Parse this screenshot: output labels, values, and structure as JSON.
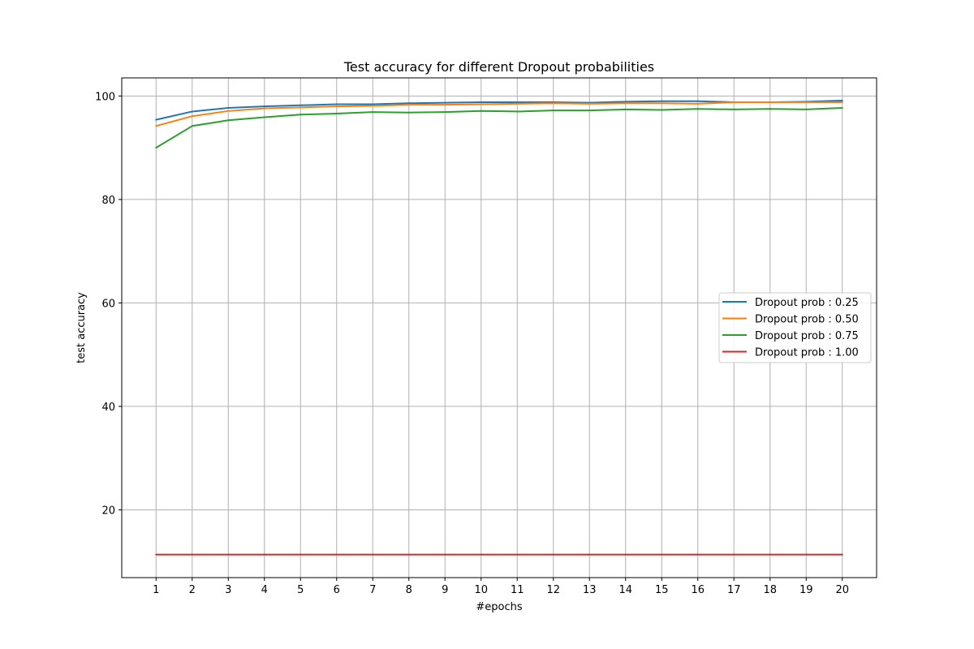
{
  "chart_data": {
    "type": "line",
    "title": "Test accuracy for different Dropout probabilities",
    "xlabel": "#epochs",
    "ylabel": "test accuracy",
    "x": [
      1,
      2,
      3,
      4,
      5,
      6,
      7,
      8,
      9,
      10,
      11,
      12,
      13,
      14,
      15,
      16,
      17,
      18,
      19,
      20
    ],
    "xlim": [
      0.05,
      20.95
    ],
    "ylim": [
      6.9,
      103.5
    ],
    "yticks": [
      20,
      40,
      60,
      80,
      100
    ],
    "grid": true,
    "legend_position": "center-right",
    "series": [
      {
        "name": "Dropout prob : 0.25",
        "color": "#1f77b4",
        "values": [
          95.4,
          97.0,
          97.7,
          98.0,
          98.2,
          98.4,
          98.4,
          98.6,
          98.7,
          98.8,
          98.8,
          98.8,
          98.7,
          98.9,
          99.0,
          99.0,
          98.8,
          98.8,
          98.9,
          99.1
        ]
      },
      {
        "name": "Dropout prob : 0.50",
        "color": "#ff7f0e",
        "values": [
          94.2,
          96.1,
          97.1,
          97.6,
          97.8,
          98.0,
          98.1,
          98.3,
          98.3,
          98.4,
          98.5,
          98.6,
          98.5,
          98.6,
          98.6,
          98.5,
          98.8,
          98.8,
          98.8,
          98.8
        ]
      },
      {
        "name": "Dropout prob : 0.75",
        "color": "#2ca02c",
        "values": [
          90.0,
          94.2,
          95.3,
          95.9,
          96.4,
          96.6,
          96.9,
          96.8,
          96.9,
          97.1,
          97.0,
          97.2,
          97.2,
          97.4,
          97.3,
          97.5,
          97.4,
          97.5,
          97.4,
          97.7
        ]
      },
      {
        "name": "Dropout prob : 1.00",
        "color": "#d62728",
        "values": [
          11.35,
          11.35,
          11.35,
          11.35,
          11.35,
          11.35,
          11.35,
          11.35,
          11.35,
          11.35,
          11.35,
          11.35,
          11.35,
          11.35,
          11.35,
          11.35,
          11.35,
          11.35,
          11.35,
          11.35
        ]
      }
    ]
  }
}
